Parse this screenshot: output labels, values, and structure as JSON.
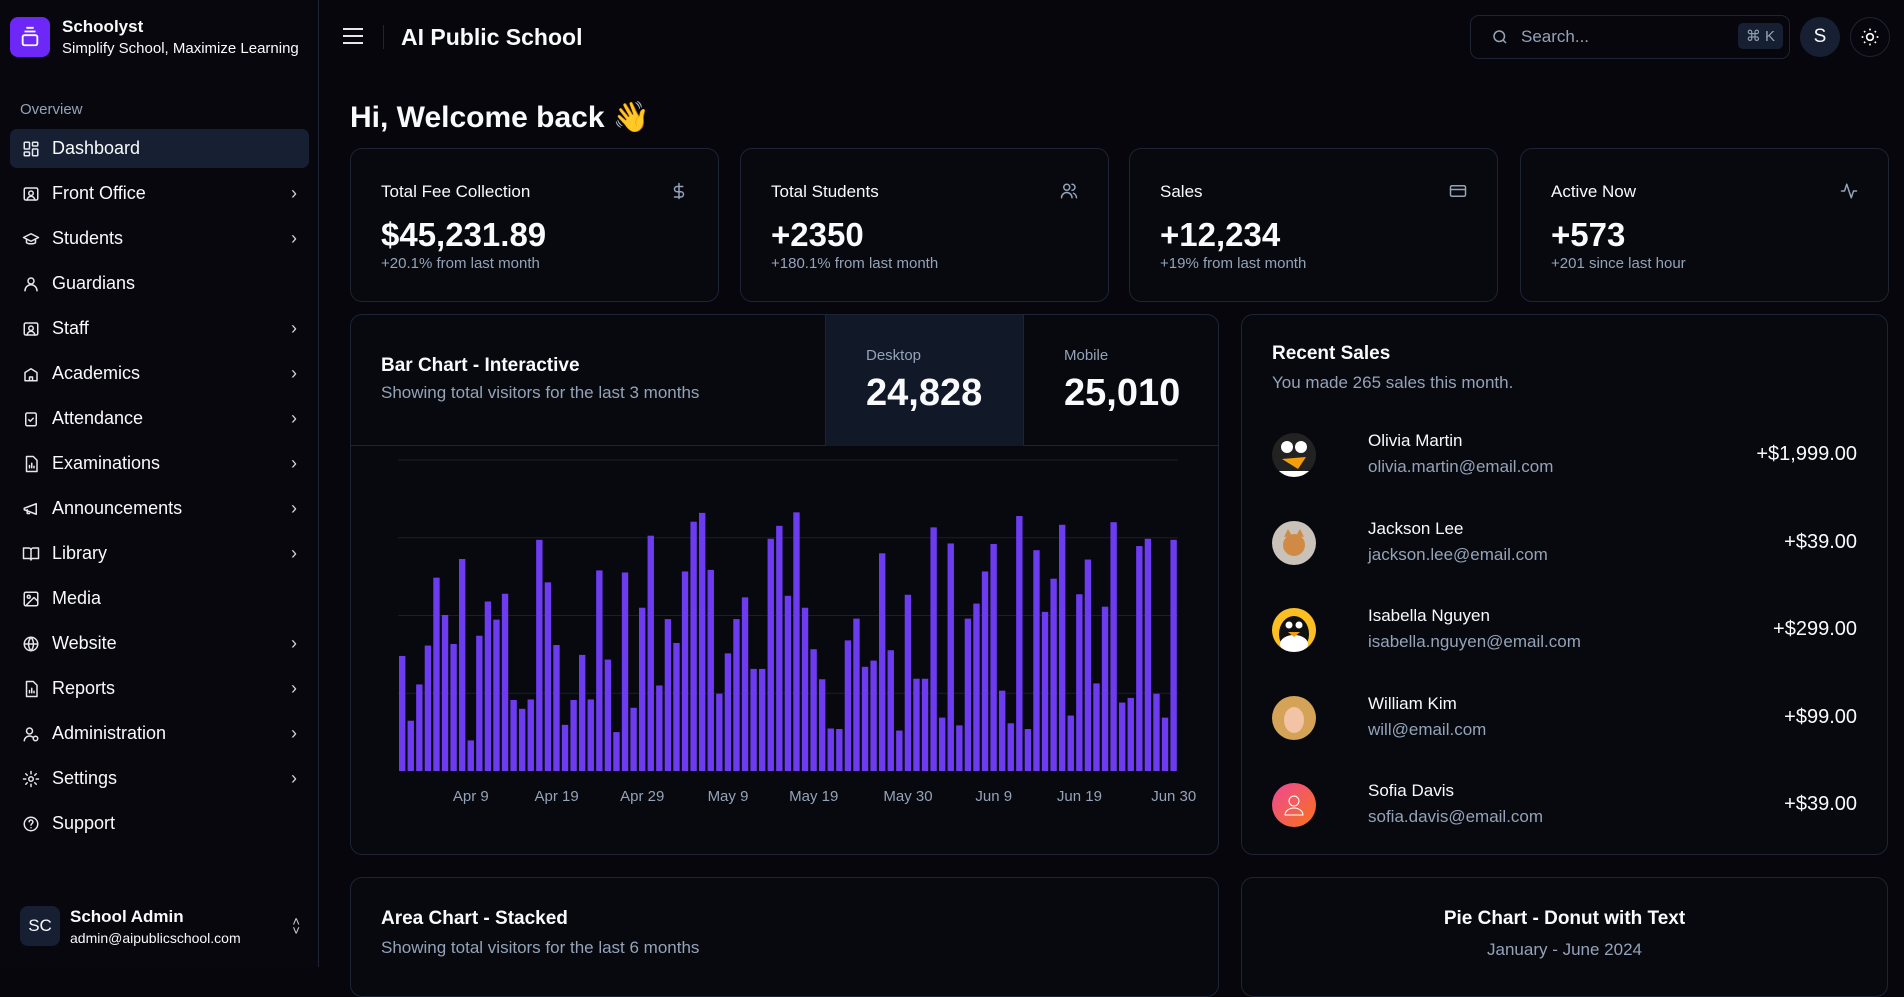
{
  "brand": {
    "name": "Schoolyst",
    "tagline": "Simplify School, Maximize Learning",
    "color": "#6d28f7"
  },
  "sidebar": {
    "section": "Overview",
    "items": [
      {
        "label": "Dashboard",
        "icon": "dashboard-icon",
        "active": true,
        "chevron": false
      },
      {
        "label": "Front Office",
        "icon": "contact-card-icon",
        "chevron": true
      },
      {
        "label": "Students",
        "icon": "graduation-icon",
        "chevron": true
      },
      {
        "label": "Guardians",
        "icon": "user-icon",
        "chevron": false
      },
      {
        "label": "Staff",
        "icon": "contact-card-icon",
        "chevron": true
      },
      {
        "label": "Academics",
        "icon": "school-icon",
        "chevron": true
      },
      {
        "label": "Attendance",
        "icon": "clipboard-check-icon",
        "chevron": true
      },
      {
        "label": "Examinations",
        "icon": "file-chart-icon",
        "chevron": true
      },
      {
        "label": "Announcements",
        "icon": "megaphone-icon",
        "chevron": true
      },
      {
        "label": "Library",
        "icon": "book-icon",
        "chevron": true
      },
      {
        "label": "Media",
        "icon": "image-icon",
        "chevron": false
      },
      {
        "label": "Website",
        "icon": "globe-icon",
        "chevron": true
      },
      {
        "label": "Reports",
        "icon": "file-chart-icon",
        "chevron": true
      },
      {
        "label": "Administration",
        "icon": "user-cog-icon",
        "chevron": true
      },
      {
        "label": "Settings",
        "icon": "gear-icon",
        "chevron": true
      },
      {
        "label": "Support",
        "icon": "help-circle-icon",
        "chevron": false
      }
    ],
    "user": {
      "initials": "SC",
      "name": "School Admin",
      "email": "admin@aipublicschool.com"
    }
  },
  "header": {
    "title": "AI Public School",
    "search_placeholder": "Search...",
    "shortcut": "⌘ K",
    "avatar": "S"
  },
  "welcome": "Hi, Welcome back 👋",
  "stats": [
    {
      "title": "Total Fee Collection",
      "value": "$45,231.89",
      "sub": "+20.1% from last month",
      "icon": "dollar-icon"
    },
    {
      "title": "Total Students",
      "value": "+2350",
      "sub": "+180.1% from last month",
      "icon": "users-icon"
    },
    {
      "title": "Sales",
      "value": "+12,234",
      "sub": "+19% from last month",
      "icon": "credit-card-icon"
    },
    {
      "title": "Active Now",
      "value": "+573",
      "sub": "+201 since last hour",
      "icon": "activity-icon"
    }
  ],
  "bar_chart": {
    "title": "Bar Chart - Interactive",
    "subtitle": "Showing total visitors for the last 3 months",
    "desktop_label": "Desktop",
    "desktop_total": "24,828",
    "mobile_label": "Mobile",
    "mobile_total": "25,010",
    "selected": "Desktop"
  },
  "chart_data": {
    "type": "bar",
    "color": "#6d3cf0",
    "ylim": [
      0,
      600
    ],
    "grid": true,
    "gridlines": [
      0,
      150,
      300,
      450,
      600
    ],
    "start": "2024-04-01",
    "end": "2024-06-30",
    "tick_labels": [
      "Apr 9",
      "Apr 19",
      "Apr 29",
      "May 9",
      "May 19",
      "May 30",
      "Jun 9",
      "Jun 19",
      "Jun 30"
    ],
    "tick_index": [
      8,
      18,
      28,
      38,
      48,
      59,
      69,
      79,
      90
    ],
    "values": [
      222,
      97,
      167,
      242,
      373,
      301,
      245,
      409,
      59,
      261,
      327,
      292,
      342,
      137,
      120,
      138,
      446,
      364,
      243,
      89,
      137,
      224,
      138,
      387,
      215,
      75,
      383,
      122,
      315,
      454,
      165,
      293,
      247,
      385,
      481,
      498,
      388,
      149,
      227,
      293,
      335,
      197,
      197,
      448,
      473,
      338,
      499,
      315,
      235,
      177,
      82,
      81,
      252,
      294,
      201,
      213,
      420,
      233,
      78,
      340,
      178,
      178,
      470,
      103,
      439,
      88,
      294,
      323,
      385,
      438,
      155,
      92,
      492,
      81,
      426,
      307,
      371,
      475,
      107,
      341,
      408,
      169,
      317,
      480,
      132,
      141,
      434,
      448,
      149,
      103,
      446
    ]
  },
  "recent_sales": {
    "title": "Recent Sales",
    "subtitle": "You made 265 sales this month.",
    "items": [
      {
        "name": "Olivia Martin",
        "email": "olivia.martin@email.com",
        "amount": "+$1,999.00"
      },
      {
        "name": "Jackson Lee",
        "email": "jackson.lee@email.com",
        "amount": "+$39.00"
      },
      {
        "name": "Isabella Nguyen",
        "email": "isabella.nguyen@email.com",
        "amount": "+$299.00"
      },
      {
        "name": "William Kim",
        "email": "will@email.com",
        "amount": "+$99.00"
      },
      {
        "name": "Sofia Davis",
        "email": "sofia.davis@email.com",
        "amount": "+$39.00"
      }
    ]
  },
  "area_chart": {
    "title": "Area Chart - Stacked",
    "subtitle": "Showing total visitors for the last 6 months"
  },
  "pie_chart": {
    "title": "Pie Chart - Donut with Text",
    "subtitle": "January - June 2024"
  }
}
